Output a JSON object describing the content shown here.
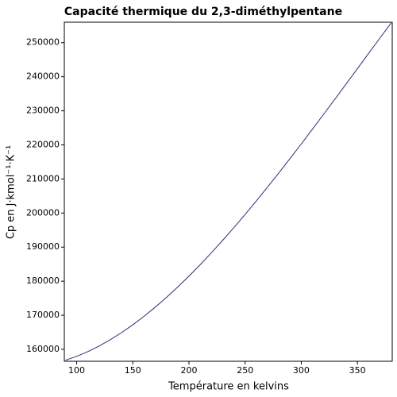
{
  "chart_data": {
    "type": "line",
    "title": "Capacité thermique du 2,3-diméthylpentane",
    "x_label": "Température en kelvins",
    "y_label": "Cp en J·kmol⁻¹·K⁻¹",
    "x": [
      90,
      100,
      110,
      120,
      130,
      140,
      150,
      160,
      170,
      180,
      190,
      200,
      210,
      220,
      230,
      240,
      250,
      260,
      270,
      280,
      290,
      300,
      310,
      320,
      330,
      340,
      350,
      360,
      370,
      380
    ],
    "series": [
      {
        "color": "#2a2a9a",
        "values": [
          156800,
          157944,
          159337,
          160970,
          162833,
          164916,
          167209,
          169704,
          172389,
          175256,
          178295,
          181496,
          184849,
          188345,
          191974,
          195727,
          199593,
          203563,
          207627,
          211777,
          216000,
          220290,
          224634,
          229026,
          233450,
          237904,
          242376,
          246858,
          251341,
          255785
        ]
      }
    ],
    "xlim": [
      89,
      381
    ],
    "xticks": [
      100,
      150,
      200,
      250,
      300,
      350
    ],
    "ylim": [
      156500,
      256000
    ],
    "yticks": [
      160000,
      170000,
      180000,
      190000,
      200000,
      210000,
      220000,
      230000,
      240000,
      250000
    ],
    "grid": false
  }
}
